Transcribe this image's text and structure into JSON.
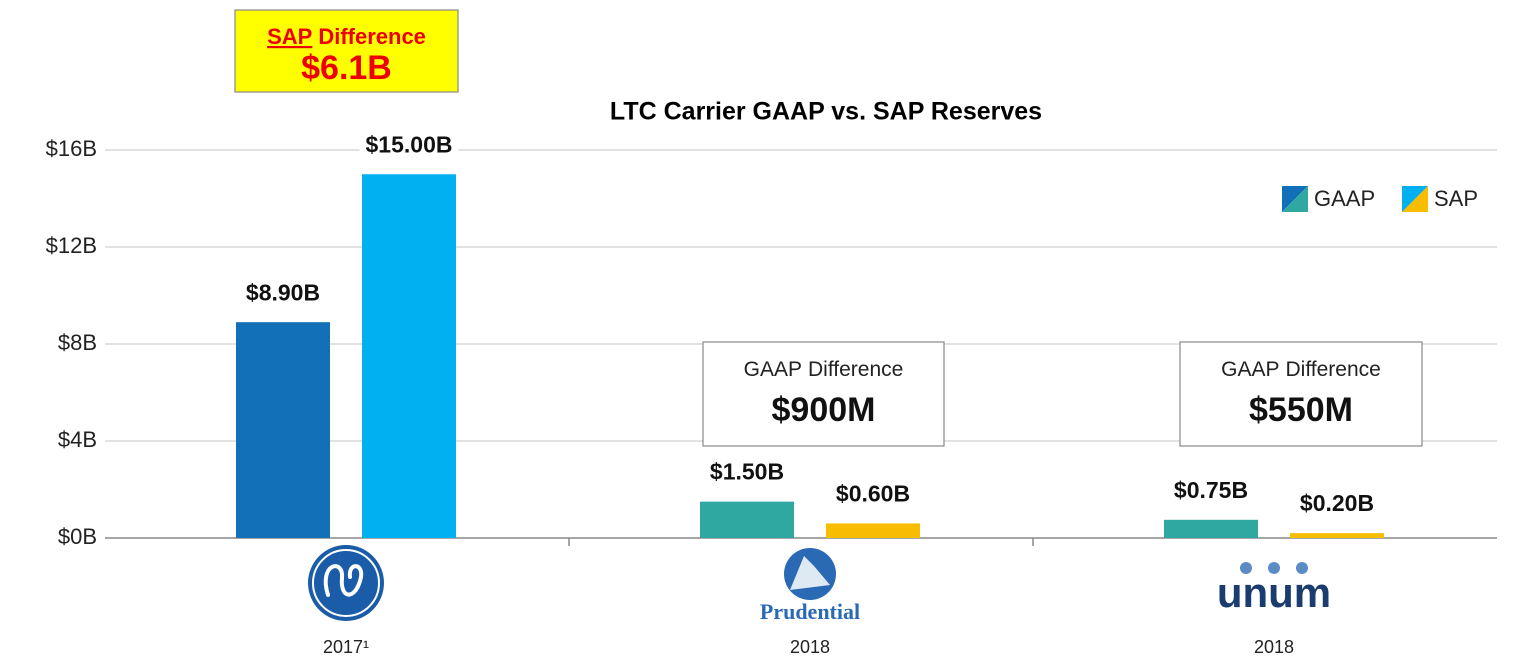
{
  "chart_data": {
    "type": "bar",
    "title": "LTC Carrier GAAP vs. SAP Reserves",
    "categories": [
      "2017¹",
      "2018",
      "2018"
    ],
    "logo_texts": [
      null,
      "Prudential",
      "unum"
    ],
    "series": [
      {
        "name": "GAAP",
        "colors": [
          "#1170b8",
          "#2ea8a1",
          "#2ea8a1"
        ],
        "values": [
          8.9,
          1.5,
          0.75
        ],
        "value_labels": [
          "$8.90B",
          "$1.50B",
          "$0.75B"
        ]
      },
      {
        "name": "SAP",
        "colors": [
          "#00b0f0",
          "#f9bd00",
          "#f9bd00"
        ],
        "values": [
          15,
          0.6,
          0.2
        ],
        "value_labels": [
          "$15.00B",
          "$0.60B",
          "$0.20B"
        ]
      }
    ],
    "ylim": [
      0,
      16
    ],
    "yticks": [
      {
        "value": 0,
        "label": "$0B"
      },
      {
        "value": 4,
        "label": "$4B"
      },
      {
        "value": 8,
        "label": "$8B"
      },
      {
        "value": 12,
        "label": "$12B"
      },
      {
        "value": 16,
        "label": "$16B"
      }
    ],
    "grid": true,
    "legend": "upper right",
    "annotations": [
      {
        "label": [
          "SAP",
          "Difference"
        ],
        "value": "$6.1B",
        "highlight": true
      },
      {
        "label": [
          "GAAP",
          "Difference"
        ],
        "value": "$900M",
        "highlight": false
      },
      {
        "label": [
          "GAAP",
          "Difference"
        ],
        "value": "$550M",
        "highlight": false
      }
    ]
  }
}
